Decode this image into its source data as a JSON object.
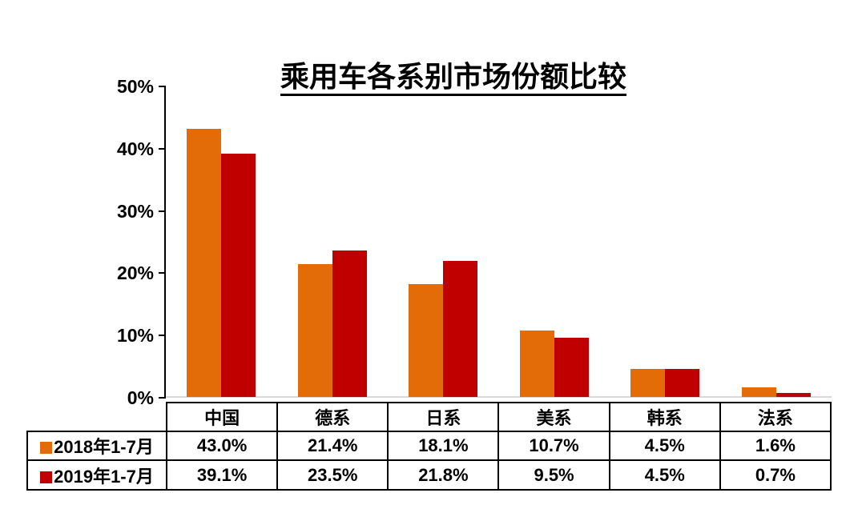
{
  "chart_data": {
    "type": "bar",
    "title": "乘用车各系别市场份额比较",
    "categories": [
      "中国",
      "德系",
      "日系",
      "美系",
      "韩系",
      "法系"
    ],
    "series": [
      {
        "name": "2018年1-7月",
        "key": "2018",
        "color": "#E36C09",
        "values": [
          43.0,
          21.4,
          18.1,
          10.7,
          4.5,
          1.6
        ],
        "labels": [
          "43.0%",
          "21.4%",
          "18.1%",
          "10.7%",
          "4.5%",
          "1.6%"
        ]
      },
      {
        "name": "2019年1-7月",
        "key": "2019",
        "color": "#C00000",
        "values": [
          39.1,
          23.5,
          21.8,
          9.5,
          4.5,
          0.7
        ],
        "labels": [
          "39.1%",
          "23.5%",
          "21.8%",
          "9.5%",
          "4.5%",
          "0.7%"
        ]
      }
    ],
    "xlabel": "",
    "ylabel": "",
    "ylim": [
      0,
      50
    ],
    "ytick_step": 10,
    "yticks": [
      "0%",
      "10%",
      "20%",
      "30%",
      "40%",
      "50%"
    ],
    "grid": false,
    "legend_position": "table-rows-left",
    "colors": {
      "axis": "#000000",
      "baseline": "#D9D9D9",
      "text": "#000000",
      "background": "#FFFFFF"
    }
  }
}
